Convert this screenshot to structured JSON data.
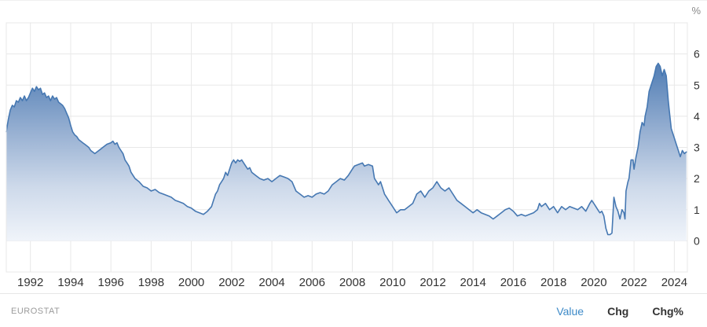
{
  "header": {
    "unit_label": "%"
  },
  "footer": {
    "source": "EUROSTAT",
    "links": [
      {
        "label": "Value"
      },
      {
        "label": "Chg"
      },
      {
        "label": "Chg%"
      }
    ],
    "active_link": "Value"
  },
  "colors": {
    "line": "#4678b2",
    "grid": "#e8e8e8",
    "axis_text": "#333333",
    "unit_text": "#8a8a8a",
    "active_link": "#3d8ac8",
    "fill_stops": [
      [
        "0%",
        "#3a68a6"
      ],
      [
        "25%",
        "#5e87ba"
      ],
      [
        "50%",
        "#97b0d2"
      ],
      [
        "75%",
        "#cdd9ea"
      ],
      [
        "100%",
        "#f0f4fa"
      ]
    ]
  },
  "chart_data": {
    "type": "area",
    "title": "",
    "xlabel": "",
    "ylabel": "%",
    "legend": "none",
    "grid": true,
    "x_range": [
      1990.8,
      2024.65
    ],
    "y_range": [
      -1,
      7
    ],
    "baseline": 0,
    "x_ticks": [
      1992,
      1994,
      1996,
      1998,
      2000,
      2002,
      2004,
      2006,
      2008,
      2010,
      2012,
      2014,
      2016,
      2018,
      2020,
      2022,
      2024
    ],
    "y_ticks": [
      0,
      1,
      2,
      3,
      4,
      5,
      6
    ],
    "series": [
      {
        "name": "Value",
        "points": [
          [
            1990.8,
            3.5
          ],
          [
            1990.9,
            3.9
          ],
          [
            1991.0,
            4.2
          ],
          [
            1991.1,
            4.35
          ],
          [
            1991.2,
            4.3
          ],
          [
            1991.3,
            4.5
          ],
          [
            1991.4,
            4.45
          ],
          [
            1991.5,
            4.6
          ],
          [
            1991.6,
            4.5
          ],
          [
            1991.7,
            4.65
          ],
          [
            1991.8,
            4.5
          ],
          [
            1991.9,
            4.6
          ],
          [
            1992.0,
            4.75
          ],
          [
            1992.1,
            4.9
          ],
          [
            1992.2,
            4.8
          ],
          [
            1992.3,
            4.95
          ],
          [
            1992.4,
            4.85
          ],
          [
            1992.5,
            4.9
          ],
          [
            1992.6,
            4.7
          ],
          [
            1992.7,
            4.75
          ],
          [
            1992.8,
            4.6
          ],
          [
            1992.9,
            4.65
          ],
          [
            1993.0,
            4.5
          ],
          [
            1993.1,
            4.65
          ],
          [
            1993.2,
            4.55
          ],
          [
            1993.3,
            4.6
          ],
          [
            1993.4,
            4.45
          ],
          [
            1993.5,
            4.4
          ],
          [
            1993.6,
            4.35
          ],
          [
            1993.7,
            4.25
          ],
          [
            1993.8,
            4.1
          ],
          [
            1993.9,
            3.95
          ],
          [
            1994.0,
            3.7
          ],
          [
            1994.1,
            3.5
          ],
          [
            1994.2,
            3.4
          ],
          [
            1994.3,
            3.35
          ],
          [
            1994.4,
            3.25
          ],
          [
            1994.5,
            3.2
          ],
          [
            1994.6,
            3.15
          ],
          [
            1994.7,
            3.1
          ],
          [
            1994.8,
            3.05
          ],
          [
            1994.9,
            3.0
          ],
          [
            1995.0,
            2.9
          ],
          [
            1995.2,
            2.8
          ],
          [
            1995.4,
            2.9
          ],
          [
            1995.6,
            3.0
          ],
          [
            1995.8,
            3.1
          ],
          [
            1996.0,
            3.15
          ],
          [
            1996.1,
            3.2
          ],
          [
            1996.2,
            3.1
          ],
          [
            1996.3,
            3.15
          ],
          [
            1996.4,
            3.0
          ],
          [
            1996.5,
            2.9
          ],
          [
            1996.6,
            2.8
          ],
          [
            1996.7,
            2.6
          ],
          [
            1996.8,
            2.5
          ],
          [
            1996.9,
            2.4
          ],
          [
            1997.0,
            2.2
          ],
          [
            1997.2,
            2.0
          ],
          [
            1997.4,
            1.9
          ],
          [
            1997.6,
            1.75
          ],
          [
            1997.8,
            1.7
          ],
          [
            1998.0,
            1.6
          ],
          [
            1998.2,
            1.65
          ],
          [
            1998.4,
            1.55
          ],
          [
            1998.6,
            1.5
          ],
          [
            1998.8,
            1.45
          ],
          [
            1999.0,
            1.4
          ],
          [
            1999.2,
            1.3
          ],
          [
            1999.4,
            1.25
          ],
          [
            1999.6,
            1.2
          ],
          [
            1999.8,
            1.1
          ],
          [
            2000.0,
            1.05
          ],
          [
            2000.2,
            0.95
          ],
          [
            2000.4,
            0.9
          ],
          [
            2000.6,
            0.85
          ],
          [
            2000.8,
            0.95
          ],
          [
            2001.0,
            1.1
          ],
          [
            2001.1,
            1.3
          ],
          [
            2001.2,
            1.5
          ],
          [
            2001.3,
            1.6
          ],
          [
            2001.4,
            1.8
          ],
          [
            2001.5,
            1.9
          ],
          [
            2001.6,
            2.0
          ],
          [
            2001.7,
            2.2
          ],
          [
            2001.8,
            2.1
          ],
          [
            2001.9,
            2.3
          ],
          [
            2002.0,
            2.5
          ],
          [
            2002.1,
            2.6
          ],
          [
            2002.2,
            2.5
          ],
          [
            2002.3,
            2.6
          ],
          [
            2002.4,
            2.55
          ],
          [
            2002.5,
            2.6
          ],
          [
            2002.6,
            2.5
          ],
          [
            2002.7,
            2.4
          ],
          [
            2002.8,
            2.3
          ],
          [
            2002.9,
            2.35
          ],
          [
            2003.0,
            2.2
          ],
          [
            2003.2,
            2.1
          ],
          [
            2003.4,
            2.0
          ],
          [
            2003.6,
            1.95
          ],
          [
            2003.8,
            2.0
          ],
          [
            2004.0,
            1.9
          ],
          [
            2004.2,
            2.0
          ],
          [
            2004.4,
            2.1
          ],
          [
            2004.6,
            2.05
          ],
          [
            2004.8,
            2.0
          ],
          [
            2005.0,
            1.9
          ],
          [
            2005.2,
            1.6
          ],
          [
            2005.4,
            1.5
          ],
          [
            2005.6,
            1.4
          ],
          [
            2005.8,
            1.45
          ],
          [
            2006.0,
            1.4
          ],
          [
            2006.2,
            1.5
          ],
          [
            2006.4,
            1.55
          ],
          [
            2006.6,
            1.5
          ],
          [
            2006.8,
            1.6
          ],
          [
            2007.0,
            1.8
          ],
          [
            2007.2,
            1.9
          ],
          [
            2007.4,
            2.0
          ],
          [
            2007.6,
            1.95
          ],
          [
            2007.8,
            2.1
          ],
          [
            2008.0,
            2.3
          ],
          [
            2008.1,
            2.4
          ],
          [
            2008.3,
            2.45
          ],
          [
            2008.5,
            2.5
          ],
          [
            2008.6,
            2.4
          ],
          [
            2008.8,
            2.45
          ],
          [
            2009.0,
            2.4
          ],
          [
            2009.1,
            2.0
          ],
          [
            2009.2,
            1.9
          ],
          [
            2009.3,
            1.8
          ],
          [
            2009.4,
            1.9
          ],
          [
            2009.5,
            1.7
          ],
          [
            2009.6,
            1.5
          ],
          [
            2009.7,
            1.4
          ],
          [
            2009.8,
            1.3
          ],
          [
            2009.9,
            1.2
          ],
          [
            2010.0,
            1.1
          ],
          [
            2010.2,
            0.9
          ],
          [
            2010.4,
            1.0
          ],
          [
            2010.6,
            1.0
          ],
          [
            2010.8,
            1.1
          ],
          [
            2011.0,
            1.2
          ],
          [
            2011.2,
            1.5
          ],
          [
            2011.4,
            1.6
          ],
          [
            2011.6,
            1.4
          ],
          [
            2011.8,
            1.6
          ],
          [
            2012.0,
            1.7
          ],
          [
            2012.2,
            1.9
          ],
          [
            2012.4,
            1.7
          ],
          [
            2012.6,
            1.6
          ],
          [
            2012.8,
            1.7
          ],
          [
            2013.0,
            1.5
          ],
          [
            2013.2,
            1.3
          ],
          [
            2013.4,
            1.2
          ],
          [
            2013.6,
            1.1
          ],
          [
            2013.8,
            1.0
          ],
          [
            2014.0,
            0.9
          ],
          [
            2014.2,
            1.0
          ],
          [
            2014.4,
            0.9
          ],
          [
            2014.6,
            0.85
          ],
          [
            2014.8,
            0.8
          ],
          [
            2015.0,
            0.7
          ],
          [
            2015.2,
            0.8
          ],
          [
            2015.4,
            0.9
          ],
          [
            2015.6,
            1.0
          ],
          [
            2015.8,
            1.05
          ],
          [
            2016.0,
            0.95
          ],
          [
            2016.2,
            0.8
          ],
          [
            2016.4,
            0.85
          ],
          [
            2016.6,
            0.8
          ],
          [
            2016.8,
            0.85
          ],
          [
            2017.0,
            0.9
          ],
          [
            2017.2,
            1.0
          ],
          [
            2017.3,
            1.2
          ],
          [
            2017.4,
            1.1
          ],
          [
            2017.6,
            1.2
          ],
          [
            2017.8,
            1.0
          ],
          [
            2018.0,
            1.1
          ],
          [
            2018.2,
            0.9
          ],
          [
            2018.4,
            1.1
          ],
          [
            2018.6,
            1.0
          ],
          [
            2018.8,
            1.1
          ],
          [
            2019.0,
            1.05
          ],
          [
            2019.2,
            1.0
          ],
          [
            2019.4,
            1.1
          ],
          [
            2019.6,
            0.95
          ],
          [
            2019.8,
            1.2
          ],
          [
            2019.9,
            1.3
          ],
          [
            2020.0,
            1.2
          ],
          [
            2020.1,
            1.1
          ],
          [
            2020.2,
            1.0
          ],
          [
            2020.3,
            0.9
          ],
          [
            2020.4,
            0.95
          ],
          [
            2020.5,
            0.8
          ],
          [
            2020.6,
            0.4
          ],
          [
            2020.7,
            0.2
          ],
          [
            2020.8,
            0.2
          ],
          [
            2020.9,
            0.25
          ],
          [
            2021.0,
            1.4
          ],
          [
            2021.1,
            1.1
          ],
          [
            2021.2,
            0.95
          ],
          [
            2021.3,
            0.7
          ],
          [
            2021.4,
            1.0
          ],
          [
            2021.5,
            0.9
          ],
          [
            2021.55,
            0.7
          ],
          [
            2021.6,
            1.6
          ],
          [
            2021.7,
            1.9
          ],
          [
            2021.75,
            2.0
          ],
          [
            2021.85,
            2.6
          ],
          [
            2021.95,
            2.6
          ],
          [
            2022.0,
            2.3
          ],
          [
            2022.1,
            2.7
          ],
          [
            2022.2,
            3.0
          ],
          [
            2022.3,
            3.5
          ],
          [
            2022.4,
            3.8
          ],
          [
            2022.5,
            3.7
          ],
          [
            2022.55,
            4.0
          ],
          [
            2022.65,
            4.3
          ],
          [
            2022.75,
            4.8
          ],
          [
            2022.85,
            5.0
          ],
          [
            2022.95,
            5.2
          ],
          [
            2023.0,
            5.3
          ],
          [
            2023.1,
            5.6
          ],
          [
            2023.2,
            5.7
          ],
          [
            2023.3,
            5.6
          ],
          [
            2023.4,
            5.3
          ],
          [
            2023.5,
            5.5
          ],
          [
            2023.6,
            5.3
          ],
          [
            2023.7,
            4.5
          ],
          [
            2023.75,
            4.2
          ],
          [
            2023.85,
            3.6
          ],
          [
            2023.95,
            3.4
          ],
          [
            2024.0,
            3.3
          ],
          [
            2024.1,
            3.1
          ],
          [
            2024.2,
            2.9
          ],
          [
            2024.3,
            2.7
          ],
          [
            2024.4,
            2.9
          ],
          [
            2024.5,
            2.8
          ],
          [
            2024.6,
            2.85
          ]
        ]
      }
    ]
  }
}
